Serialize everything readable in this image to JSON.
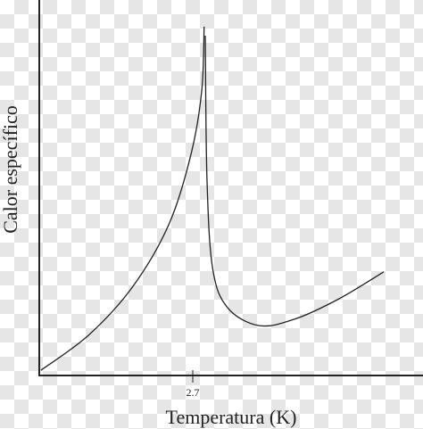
{
  "chart_data": {
    "type": "line",
    "x_label": "Temperatura (K)",
    "y_label": "Calor específico",
    "x": [
      0.03,
      0.88,
      1.66,
      2.29,
      2.68,
      2.86,
      2.9,
      null,
      2.92,
      2.95,
      3.05,
      3.31,
      3.86,
      4.49,
      5.27,
      6.06
    ],
    "values": [
      0.14,
      1.09,
      2.4,
      4.06,
      5.96,
      7.62,
      9.29,
      null,
      9.05,
      5.23,
      2.85,
      1.81,
      1.33,
      1.5,
      2.04,
      2.76
    ],
    "color": "#222222",
    "xlim": [
      0,
      6.75
    ],
    "ylim": [
      0,
      10
    ],
    "xticks": [
      2.7
    ]
  }
}
